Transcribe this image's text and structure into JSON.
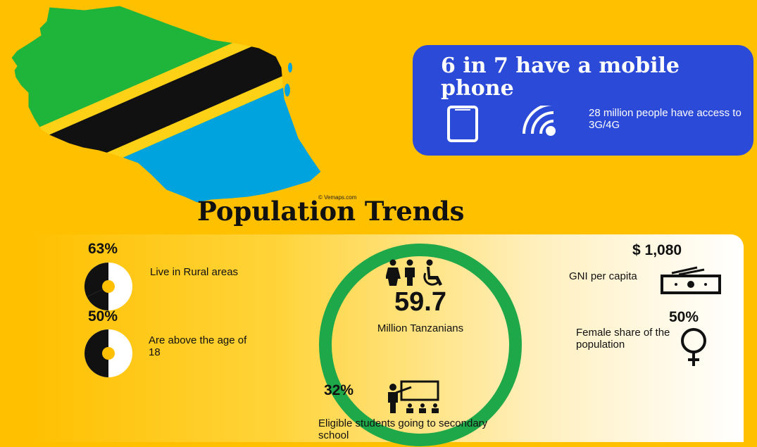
{
  "map": {
    "credit": "© Vemaps.com"
  },
  "mobile": {
    "title": "6 in 7 have a mobile phone",
    "note": "28 million people have access to 3G/4G",
    "phone_icon": "smartphone-icon",
    "signal_icon": "wifi-signal-icon",
    "colors": {
      "card": "#2c4ad8"
    }
  },
  "section": {
    "title": "Population Trends"
  },
  "stats": {
    "rural": {
      "value": "63%",
      "label": "Live in Rural areas",
      "icon": "donut-chart-icon"
    },
    "adult": {
      "value": "50%",
      "label": "Are above the age of 18",
      "icon": "donut-chart-icon"
    },
    "population": {
      "value": "59.7",
      "label": "Million Tanzanians",
      "icon": "people-icon",
      "ring_color": "#1ea84a"
    },
    "gni": {
      "value": "$ 1,080",
      "label": "GNI per capita",
      "icon": "money-icon"
    },
    "female": {
      "value": "50%",
      "label": "Female share of the population",
      "icon": "female-symbol-icon"
    },
    "school": {
      "value": "32%",
      "label": "Eligible students going to secondary school",
      "icon": "classroom-icon"
    }
  },
  "colors": {
    "background": "#ffc000",
    "flag_green": "#1eb53a",
    "flag_blue": "#00a3dd",
    "flag_black": "#111111",
    "flag_yellow": "#fcd116"
  }
}
